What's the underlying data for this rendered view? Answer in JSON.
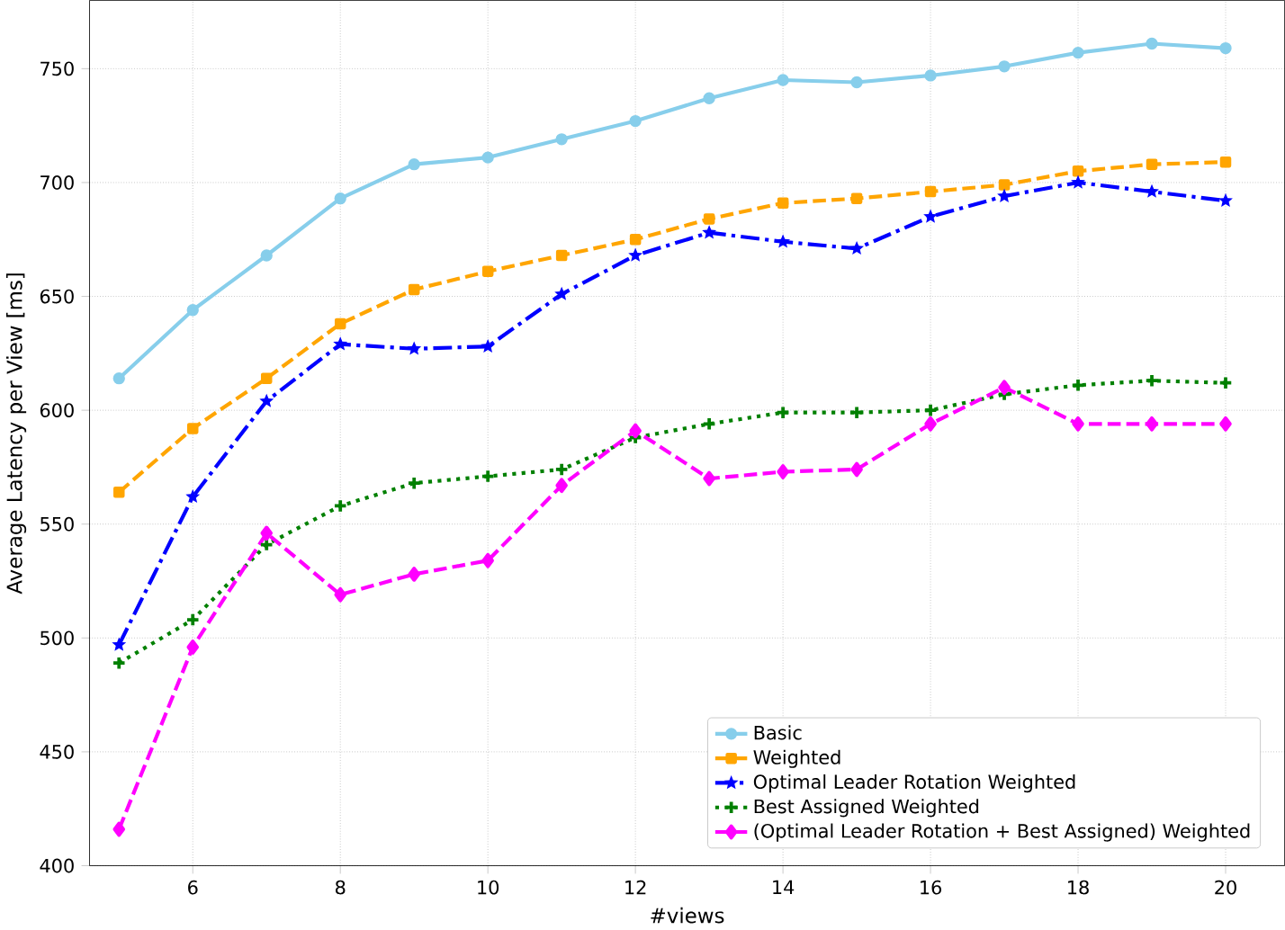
{
  "chart_data": {
    "type": "line",
    "xlabel": "#views",
    "ylabel": "Average Latency per View [ms]",
    "x": [
      5,
      6,
      7,
      8,
      9,
      10,
      11,
      12,
      13,
      14,
      15,
      16,
      17,
      18,
      19,
      20
    ],
    "series": [
      {
        "name": "Basic",
        "color": "#87ceeb",
        "marker": "circle",
        "line_style": "solid",
        "values": [
          614,
          644,
          668,
          693,
          708,
          711,
          719,
          727,
          737,
          745,
          744,
          747,
          751,
          757,
          761,
          759
        ]
      },
      {
        "name": "Weighted",
        "color": "#ffa500",
        "marker": "square",
        "line_style": "dashed",
        "values": [
          564,
          592,
          614,
          638,
          653,
          661,
          668,
          675,
          684,
          691,
          693,
          696,
          699,
          705,
          708,
          709
        ]
      },
      {
        "name": "Optimal Leader Rotation Weighted",
        "color": "#0000ff",
        "marker": "star",
        "line_style": "dashdot",
        "values": [
          497,
          562,
          604,
          629,
          627,
          628,
          651,
          668,
          678,
          674,
          671,
          685,
          694,
          700,
          696,
          692
        ]
      },
      {
        "name": "Best Assigned Weighted",
        "color": "#008000",
        "marker": "cross",
        "line_style": "dotted",
        "values": [
          489,
          508,
          541,
          558,
          568,
          571,
          574,
          588,
          594,
          599,
          599,
          600,
          607,
          611,
          613,
          612
        ]
      },
      {
        "name": "(Optimal Leader Rotation + Best Assigned) Weighted",
        "color": "#ff00ff",
        "marker": "diamond",
        "line_style": "dashed",
        "values": [
          416,
          496,
          546,
          519,
          528,
          534,
          567,
          591,
          570,
          573,
          574,
          594,
          610,
          594,
          594,
          594
        ]
      }
    ],
    "xlim": [
      4.6,
      20.8
    ],
    "ylim": [
      400,
      780
    ],
    "xticks": [
      6,
      8,
      10,
      12,
      14,
      16,
      18,
      20
    ],
    "yticks": [
      400,
      450,
      500,
      550,
      600,
      650,
      700,
      750
    ],
    "grid": true,
    "legend": "bottom right"
  }
}
